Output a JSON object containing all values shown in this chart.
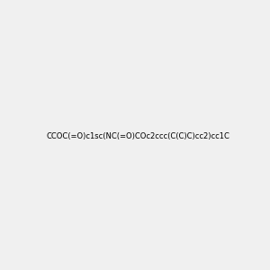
{
  "smiles": "CCOC(=O)c1sc(NC(=O)COc2ccc(C(C)C)cc2)cc1C",
  "title": "",
  "background_color": "#f0f0f0",
  "figsize": [
    3.0,
    3.0
  ],
  "dpi": 100
}
